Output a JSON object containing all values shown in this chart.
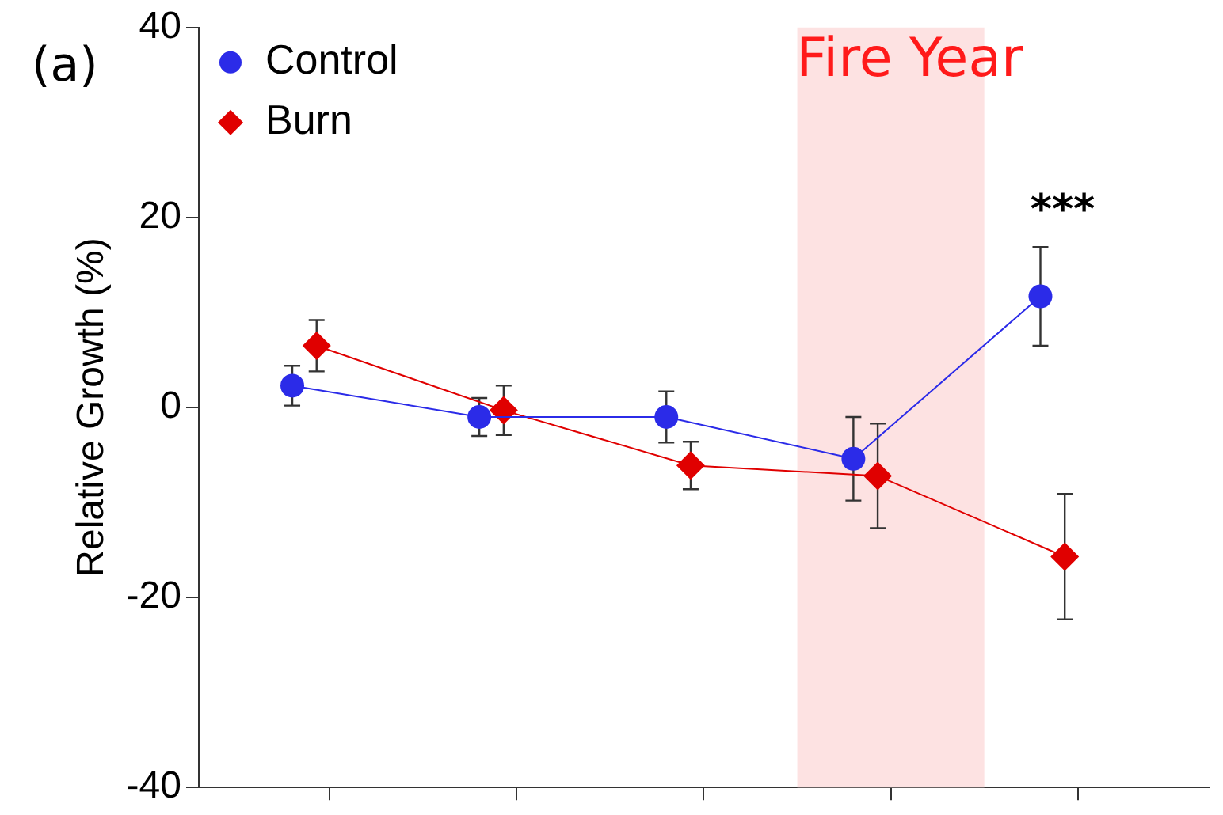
{
  "chart_data": {
    "type": "line",
    "ylabel": "Relative Growth (%)",
    "categories": [
      null,
      null,
      null,
      null,
      null
    ],
    "series": [
      {
        "name": "Control",
        "color": "#2b2be8",
        "marker": "circle",
        "values": [
          2.3,
          -1.0,
          -1.0,
          -5.4,
          11.7
        ],
        "errors": [
          2.1,
          2.0,
          2.7,
          4.4,
          5.2
        ]
      },
      {
        "name": "Burn",
        "color": "#e00000",
        "marker": "diamond",
        "values": [
          6.5,
          -0.3,
          -6.1,
          -7.2,
          -15.7
        ],
        "errors": [
          2.7,
          2.6,
          2.5,
          5.5,
          6.6
        ]
      }
    ],
    "ylim": [
      -40,
      40
    ],
    "yticks": [
      -40,
      -20,
      0,
      20,
      40
    ],
    "annotations": [
      "(a)",
      "Fire Year",
      "***"
    ],
    "grid": false,
    "legend": "top left",
    "tick_labels": "y"
  }
}
